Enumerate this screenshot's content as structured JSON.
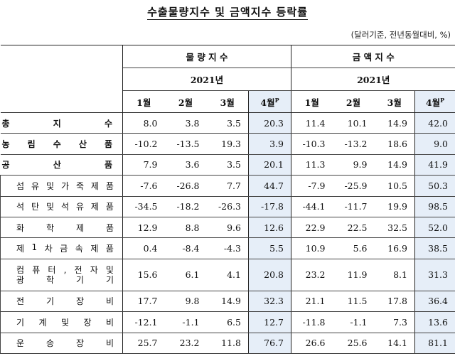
{
  "title": "수출물량지수 및 금액지수 등락률",
  "unit": "(달러기준, 전년동월대비, %)",
  "header": {
    "group1": "물 량 지 수",
    "group2": "금 액 지 수",
    "year": "2021년",
    "months": [
      "1월",
      "2월",
      "3월",
      "4월"
    ],
    "prelim_mark": "P"
  },
  "rows": [
    {
      "label": "총 지 수",
      "type": "main",
      "qty": [
        "8.0",
        "3.8",
        "3.5",
        "20.3"
      ],
      "amt": [
        "11.4",
        "10.1",
        "14.9",
        "42.0"
      ]
    },
    {
      "label": "농림수산품",
      "type": "main",
      "qty": [
        "-10.2",
        "-13.5",
        "19.3",
        "3.9"
      ],
      "amt": [
        "-10.3",
        "-13.2",
        "18.6",
        "9.0"
      ]
    },
    {
      "label": "공 산 품",
      "type": "main",
      "qty": [
        "7.9",
        "3.6",
        "3.5",
        "20.1"
      ],
      "amt": [
        "11.3",
        "9.9",
        "14.9",
        "41.9"
      ]
    },
    {
      "label": "섬유및가죽제품",
      "type": "sub",
      "qty": [
        "-7.6",
        "-26.8",
        "7.7",
        "44.7"
      ],
      "amt": [
        "-7.9",
        "-25.9",
        "10.5",
        "50.3"
      ]
    },
    {
      "label": "석탄및석유제품",
      "type": "sub",
      "qty": [
        "-34.5",
        "-18.2",
        "-26.3",
        "-17.8"
      ],
      "amt": [
        "-44.1",
        "-11.7",
        "19.9",
        "98.5"
      ]
    },
    {
      "label": "화 학 제 품",
      "type": "sub",
      "qty": [
        "12.9",
        "8.8",
        "9.6",
        "12.6"
      ],
      "amt": [
        "22.9",
        "22.5",
        "32.5",
        "52.0"
      ]
    },
    {
      "label": "제1차금속제품",
      "type": "sub",
      "qty": [
        "0.4",
        "-8.4",
        "-4.3",
        "5.5"
      ],
      "amt": [
        "10.9",
        "5.6",
        "16.9",
        "38.5"
      ]
    },
    {
      "label": "컴퓨터,전자및",
      "label2": "광 학 기 기",
      "type": "sub2",
      "qty": [
        "15.6",
        "6.1",
        "4.1",
        "20.8"
      ],
      "amt": [
        "23.2",
        "11.9",
        "8.1",
        "31.3"
      ]
    },
    {
      "label": "전 기 장 비",
      "type": "sub",
      "qty": [
        "17.7",
        "9.8",
        "14.9",
        "32.3"
      ],
      "amt": [
        "21.1",
        "11.5",
        "17.8",
        "36.4"
      ]
    },
    {
      "label": "기 계 및 장 비",
      "type": "sub",
      "qty": [
        "-12.1",
        "-1.1",
        "6.5",
        "12.7"
      ],
      "amt": [
        "-11.8",
        "-1.1",
        "7.3",
        "13.6"
      ]
    },
    {
      "label": "운 송 장 비",
      "type": "sub",
      "qty": [
        "25.7",
        "23.2",
        "11.8",
        "76.7"
      ],
      "amt": [
        "26.6",
        "25.6",
        "14.1",
        "81.1"
      ]
    }
  ]
}
